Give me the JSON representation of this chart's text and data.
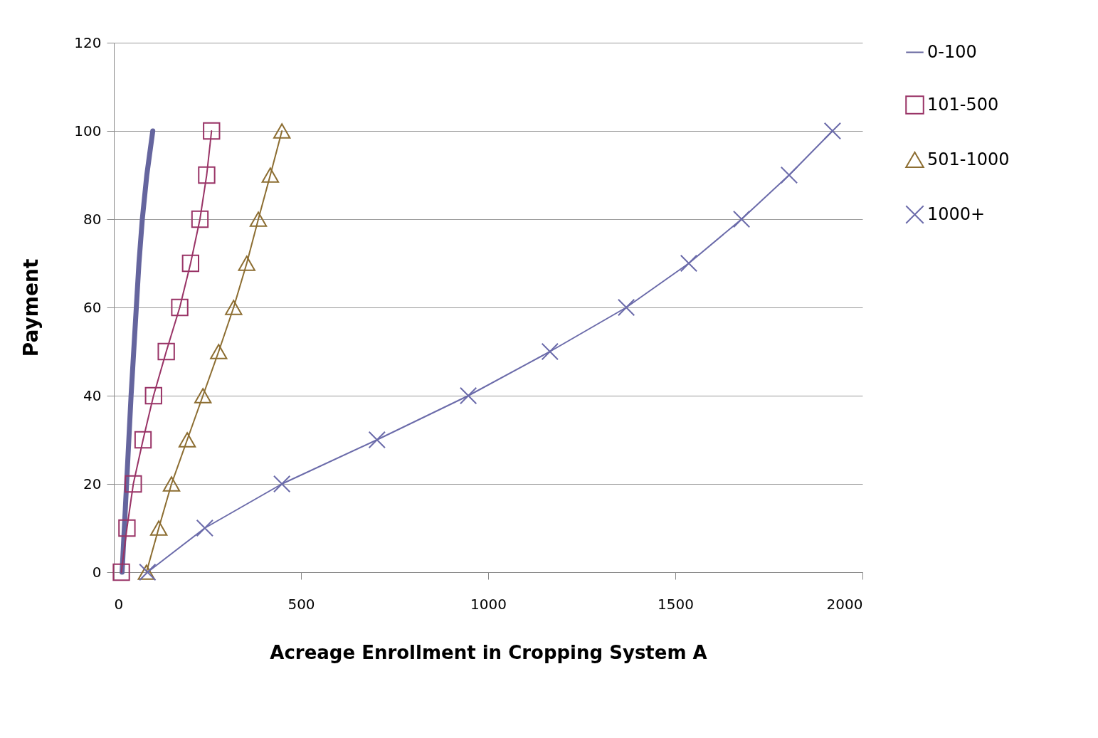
{
  "chart_data": {
    "type": "line",
    "xlabel": "Acreage Enrollment in Cropping System A",
    "ylabel": "Payment",
    "xlim": [
      0,
      2000
    ],
    "xticks": [
      0,
      500,
      1000,
      1500,
      2000
    ],
    "ylim": [
      0,
      120
    ],
    "yticks": [
      0,
      20,
      40,
      60,
      80,
      100,
      120
    ],
    "grid": "y",
    "legend": "right",
    "line_style": "solid",
    "series": [
      {
        "name": "0-100",
        "color": "#65659e",
        "marker": "none",
        "x": [
          22,
          28,
          34,
          40,
          46,
          53,
          60,
          67,
          76,
          88,
          104
        ],
        "values": [
          0,
          10,
          20,
          30,
          40,
          50,
          60,
          70,
          80,
          90,
          100
        ]
      },
      {
        "name": "101-500",
        "color": "#993366",
        "marker": "square",
        "x": [
          20,
          35,
          52,
          78,
          106,
          140,
          176,
          205,
          230,
          248,
          261
        ],
        "values": [
          0,
          10,
          20,
          30,
          40,
          50,
          60,
          70,
          80,
          90,
          100
        ]
      },
      {
        "name": "501-1000",
        "color": "#8c6d31",
        "marker": "triangle",
        "x": [
          87,
          120,
          154,
          196,
          238,
          280,
          320,
          355,
          386,
          418,
          449
        ],
        "values": [
          0,
          10,
          20,
          30,
          40,
          50,
          60,
          70,
          80,
          90,
          100
        ]
      },
      {
        "name": "1000+",
        "color": "#6b6baa",
        "marker": "cross",
        "x": [
          90,
          243,
          449,
          703,
          947,
          1165,
          1369,
          1536,
          1677,
          1804,
          1920
        ],
        "values": [
          0,
          10,
          20,
          30,
          40,
          50,
          60,
          70,
          80,
          90,
          100
        ]
      }
    ]
  }
}
